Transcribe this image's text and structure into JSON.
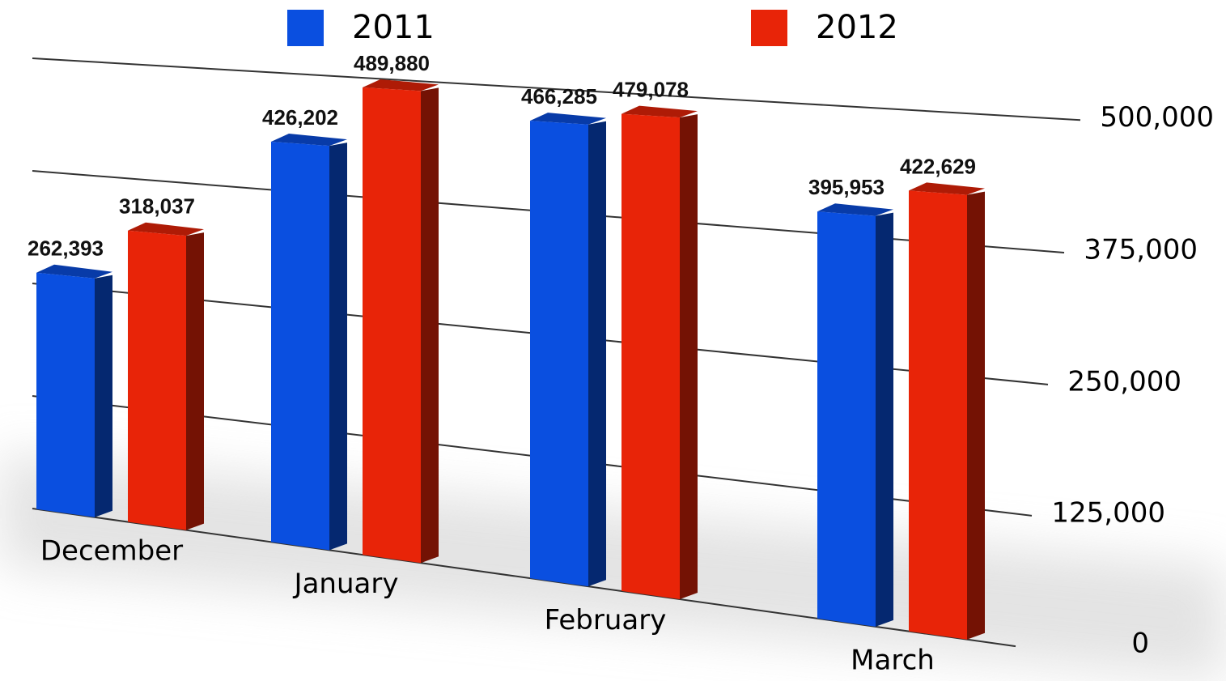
{
  "chart_data": {
    "type": "bar3d",
    "categories": [
      "December",
      "January",
      "February",
      "March"
    ],
    "series": [
      {
        "name": "2011",
        "color": "#0a4fe0",
        "values": [
          262393,
          426202,
          466285,
          395953
        ],
        "value_labels": [
          "262,393",
          "426,202",
          "466,285",
          "395,953"
        ]
      },
      {
        "name": "2012",
        "color": "#e82408",
        "values": [
          318037,
          489880,
          479078,
          422629
        ],
        "value_labels": [
          "318,037",
          "489,880",
          "479,078",
          "422,629"
        ]
      }
    ],
    "ylim": [
      0,
      500000
    ],
    "yticks": [
      0,
      {
        "value": 125000,
        "label": "125,000"
      },
      {
        "value": 250000,
        "label": "250,000"
      },
      {
        "value": 375000,
        "label": "375,000"
      },
      {
        "value": 500000,
        "label": "500,000"
      }
    ],
    "grid": true,
    "legend": "top"
  }
}
